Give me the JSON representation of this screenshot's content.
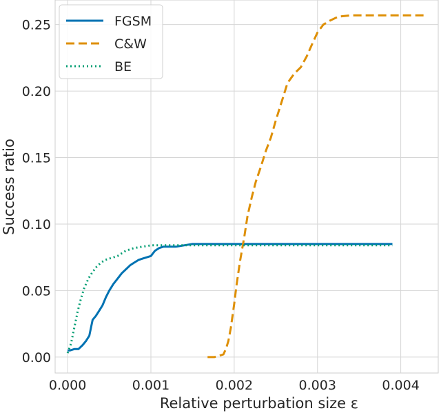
{
  "chart_data": {
    "type": "line",
    "title": "",
    "xlabel": "Relative perturbation size ε",
    "ylabel": "Success ratio",
    "xlim": [
      -0.00015,
      0.00445
    ],
    "ylim": [
      -0.012,
      0.2685
    ],
    "x_ticks": [
      0.0,
      0.001,
      0.002,
      0.003,
      0.004
    ],
    "x_tick_labels": [
      "0.000",
      "0.001",
      "0.002",
      "0.003",
      "0.004"
    ],
    "y_ticks": [
      0.0,
      0.05,
      0.1,
      0.15,
      0.2,
      0.25
    ],
    "y_tick_labels": [
      "0.00",
      "0.05",
      "0.10",
      "0.15",
      "0.20",
      "0.25"
    ],
    "grid": true,
    "legend_position": "top-left",
    "series": [
      {
        "name": "FGSM",
        "color": "#0072b2",
        "style": "solid",
        "points": [
          [
            0.0,
            0.005
          ],
          [
            3e-05,
            0.005
          ],
          [
            8e-05,
            0.006
          ],
          [
            0.00013,
            0.006
          ],
          [
            0.00018,
            0.009
          ],
          [
            0.00022,
            0.012
          ],
          [
            0.00026,
            0.016
          ],
          [
            0.0003,
            0.028
          ],
          [
            0.00034,
            0.031
          ],
          [
            0.00038,
            0.035
          ],
          [
            0.00042,
            0.039
          ],
          [
            0.00046,
            0.045
          ],
          [
            0.0005,
            0.05
          ],
          [
            0.00055,
            0.055
          ],
          [
            0.0006,
            0.059
          ],
          [
            0.00065,
            0.063
          ],
          [
            0.0007,
            0.066
          ],
          [
            0.00075,
            0.069
          ],
          [
            0.0008,
            0.071
          ],
          [
            0.00085,
            0.073
          ],
          [
            0.0009,
            0.074
          ],
          [
            0.00095,
            0.075
          ],
          [
            0.001,
            0.076
          ],
          [
            0.00105,
            0.08
          ],
          [
            0.0011,
            0.082
          ],
          [
            0.00115,
            0.083
          ],
          [
            0.0012,
            0.083
          ],
          [
            0.0013,
            0.083
          ],
          [
            0.0014,
            0.084
          ],
          [
            0.0015,
            0.085
          ],
          [
            0.0017,
            0.085
          ],
          [
            0.002,
            0.085
          ],
          [
            0.0025,
            0.085
          ],
          [
            0.003,
            0.085
          ],
          [
            0.0035,
            0.085
          ],
          [
            0.0039,
            0.085
          ]
        ]
      },
      {
        "name": "C&W",
        "color": "#de8f05",
        "style": "dashed",
        "points": [
          [
            0.00168,
            0.0
          ],
          [
            0.00176,
            0.0
          ],
          [
            0.00182,
            0.001
          ],
          [
            0.00187,
            0.002
          ],
          [
            0.0019,
            0.006
          ],
          [
            0.00193,
            0.012
          ],
          [
            0.00196,
            0.022
          ],
          [
            0.002,
            0.04
          ],
          [
            0.00203,
            0.055
          ],
          [
            0.00207,
            0.072
          ],
          [
            0.00212,
            0.09
          ],
          [
            0.00216,
            0.106
          ],
          [
            0.00221,
            0.12
          ],
          [
            0.00226,
            0.132
          ],
          [
            0.00232,
            0.143
          ],
          [
            0.00238,
            0.155
          ],
          [
            0.00244,
            0.165
          ],
          [
            0.0025,
            0.178
          ],
          [
            0.00257,
            0.192
          ],
          [
            0.00264,
            0.206
          ],
          [
            0.00272,
            0.213
          ],
          [
            0.0028,
            0.218
          ],
          [
            0.00287,
            0.226
          ],
          [
            0.00294,
            0.236
          ],
          [
            0.003,
            0.244
          ],
          [
            0.00307,
            0.25
          ],
          [
            0.00315,
            0.253
          ],
          [
            0.00325,
            0.256
          ],
          [
            0.0034,
            0.257
          ],
          [
            0.0036,
            0.257
          ],
          [
            0.0038,
            0.257
          ],
          [
            0.004,
            0.257
          ],
          [
            0.0043,
            0.257
          ]
        ]
      },
      {
        "name": "BE",
        "color": "#029e73",
        "style": "dotted",
        "points": [
          [
            0.0,
            0.003
          ],
          [
            4e-05,
            0.01
          ],
          [
            8e-05,
            0.022
          ],
          [
            0.00012,
            0.034
          ],
          [
            0.00016,
            0.044
          ],
          [
            0.0002,
            0.052
          ],
          [
            0.00025,
            0.059
          ],
          [
            0.0003,
            0.064
          ],
          [
            0.00035,
            0.068
          ],
          [
            0.0004,
            0.071
          ],
          [
            0.00045,
            0.073
          ],
          [
            0.0005,
            0.074
          ],
          [
            0.00055,
            0.075
          ],
          [
            0.0006,
            0.076
          ],
          [
            0.00065,
            0.078
          ],
          [
            0.0007,
            0.08
          ],
          [
            0.00075,
            0.081
          ],
          [
            0.0008,
            0.082
          ],
          [
            0.0009,
            0.083
          ],
          [
            0.001,
            0.084
          ],
          [
            0.0011,
            0.084
          ],
          [
            0.0012,
            0.084
          ],
          [
            0.0015,
            0.084
          ],
          [
            0.002,
            0.084
          ],
          [
            0.0025,
            0.084
          ],
          [
            0.003,
            0.084
          ],
          [
            0.0035,
            0.084
          ],
          [
            0.0039,
            0.084
          ]
        ]
      }
    ]
  }
}
